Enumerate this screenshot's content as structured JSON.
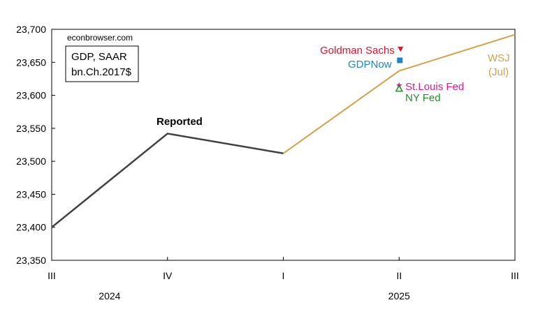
{
  "chart_data": {
    "type": "line",
    "source_note": "econbrowser.com",
    "legend_box": {
      "line1": "GDP, SAAR",
      "line2": "bn.Ch.2017$"
    },
    "y_ticks": [
      "23,700",
      "23,650",
      "23,600",
      "23,550",
      "23,500",
      "23,450",
      "23,400",
      "23,350"
    ],
    "ylim": [
      23350,
      23700
    ],
    "x_ticks": [
      "III",
      "IV",
      "I",
      "II",
      "III"
    ],
    "x_years": [
      "2024",
      "2025"
    ],
    "x_categories": [
      "2024Q3",
      "2024Q4",
      "2025Q1",
      "2025Q2",
      "2025Q3"
    ],
    "series": [
      {
        "name": "Reported",
        "color": "#404040",
        "x": [
          "2024Q3",
          "2024Q4",
          "2025Q1"
        ],
        "values": [
          23400,
          23542,
          23512
        ]
      },
      {
        "name": "WSJ (Jul)",
        "color": "#d4a04c",
        "x": [
          "2025Q1",
          "2025Q2",
          "2025Q3"
        ],
        "values": [
          23512,
          23637,
          23692
        ]
      }
    ],
    "labels": {
      "reported": "Reported",
      "wsj_line1": "WSJ",
      "wsj_line2": "(Jul)"
    },
    "forecasts": [
      {
        "name": "Goldman Sachs",
        "x": "2025Q2",
        "value": 23670,
        "color": "#e8102a",
        "marker": "triangle-down"
      },
      {
        "name": "GDPNow",
        "x": "2025Q2",
        "value": 23653,
        "color": "#1f84c8",
        "marker": "square"
      },
      {
        "name": "St.Louis Fed",
        "x": "2025Q2",
        "value": 23615,
        "color": "#e8188c",
        "marker": "star"
      },
      {
        "name": "NY Fed",
        "x": "2025Q2",
        "value": 23610,
        "color": "#2a8a2a",
        "marker": "triangle-up-open"
      }
    ]
  }
}
